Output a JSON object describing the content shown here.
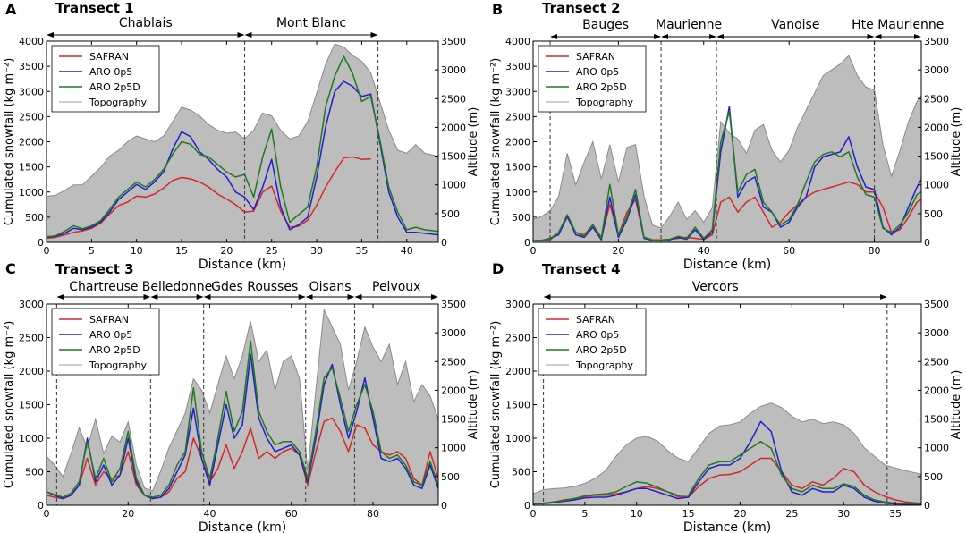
{
  "colors": {
    "safran": "#d62728",
    "aro_0p5": "#1f1fcf",
    "aro_2p5d": "#1e7a1e",
    "topography_fill": "#bdbdbd",
    "topography_line": "#8a8a8a"
  },
  "legend": {
    "entries": [
      "SAFRAN",
      "ARO 0p5",
      "ARO 2p5D",
      "Topography"
    ]
  },
  "chart_data": [
    {
      "panel": "A",
      "title": "Transect 1",
      "type": "line",
      "xlabel": "Distance (km)",
      "ylabel_left": "Cumulated snowfall (kg m⁻²)",
      "ylabel_right": "Altitude (m)",
      "xlim": [
        0,
        43.5
      ],
      "ylim": [
        0,
        4000
      ],
      "y2lim": [
        0,
        3500
      ],
      "xticks": [
        0,
        5,
        10,
        15,
        20,
        25,
        30,
        35,
        40
      ],
      "yticks": [
        0,
        500,
        1000,
        1500,
        2000,
        2500,
        3000,
        3500,
        4000
      ],
      "y2ticks": [
        0,
        500,
        1000,
        1500,
        2000,
        2500,
        3000,
        3500
      ],
      "regions": [
        {
          "label": "Chablais",
          "from": 0,
          "to": 22
        },
        {
          "label": "Mont Blanc",
          "from": 22,
          "to": 36.8
        }
      ],
      "dividers": [
        22,
        36.8
      ],
      "x": [
        0,
        1,
        2,
        3,
        4,
        5,
        6,
        7,
        8,
        9,
        10,
        11,
        12,
        13,
        14,
        15,
        16,
        17,
        18,
        19,
        20,
        21,
        22,
        23,
        24,
        25,
        26,
        27,
        28,
        29,
        30,
        31,
        32,
        33,
        34,
        35,
        36,
        37,
        38,
        39,
        40,
        41,
        42,
        43.5
      ],
      "topography": [
        800,
        820,
        900,
        1000,
        1000,
        1150,
        1300,
        1500,
        1600,
        1750,
        1850,
        1800,
        1750,
        1850,
        2100,
        2350,
        2300,
        2200,
        2050,
        1950,
        1900,
        1920,
        1800,
        1950,
        2250,
        2200,
        1950,
        1800,
        1850,
        2100,
        2600,
        3100,
        3450,
        3400,
        3250,
        3150,
        2950,
        2450,
        1950,
        1600,
        1550,
        1700,
        1550,
        1500
      ],
      "series": [
        {
          "name": "SAFRAN",
          "values": [
            80,
            100,
            150,
            200,
            230,
            280,
            380,
            560,
            730,
            800,
            920,
            900,
            960,
            1080,
            1230,
            1290,
            1260,
            1200,
            1100,
            960,
            860,
            750,
            600,
            620,
            1000,
            1120,
            620,
            300,
            320,
            440,
            740,
            1100,
            1400,
            1680,
            1700,
            1650,
            1660,
            null,
            null,
            null,
            null,
            null,
            null,
            null
          ]
        },
        {
          "name": "ARO 0p5",
          "values": [
            100,
            120,
            180,
            280,
            250,
            300,
            400,
            600,
            850,
            1000,
            1150,
            1050,
            1200,
            1400,
            1850,
            2200,
            2100,
            1800,
            1650,
            1450,
            1300,
            1000,
            900,
            650,
            1100,
            1650,
            700,
            250,
            350,
            500,
            1300,
            2300,
            3000,
            3200,
            3100,
            2900,
            2950,
            2000,
            1000,
            500,
            200,
            200,
            180,
            150
          ]
        },
        {
          "name": "ARO 2p5D",
          "values": [
            110,
            130,
            220,
            330,
            270,
            330,
            430,
            650,
            900,
            1050,
            1200,
            1100,
            1250,
            1450,
            1750,
            2000,
            1950,
            1750,
            1700,
            1550,
            1400,
            1300,
            1350,
            900,
            1700,
            2250,
            1100,
            400,
            550,
            700,
            1500,
            2700,
            3300,
            3700,
            3350,
            2800,
            2900,
            2050,
            1100,
            600,
            250,
            300,
            250,
            220
          ]
        }
      ]
    },
    {
      "panel": "B",
      "title": "Transect 2",
      "type": "line",
      "xlabel": "Distance (km)",
      "ylabel_left": "Cumulated snowfall (kg m⁻²)",
      "ylabel_right": "Altitude (m)",
      "xlim": [
        0,
        91
      ],
      "ylim": [
        0,
        4000
      ],
      "y2lim": [
        0,
        3500
      ],
      "xticks": [
        0,
        20,
        40,
        60,
        80
      ],
      "yticks": [
        0,
        500,
        1000,
        1500,
        2000,
        2500,
        3000,
        3500,
        4000
      ],
      "y2ticks": [
        0,
        500,
        1000,
        1500,
        2000,
        2500,
        3000,
        3500
      ],
      "regions": [
        {
          "label": "Bauges",
          "from": 4,
          "to": 30
        },
        {
          "label": "Maurienne",
          "from": 30,
          "to": 43
        },
        {
          "label": "Vanoise",
          "from": 43,
          "to": 80
        },
        {
          "label": "Hte Maurienne",
          "from": 80,
          "to": 91
        }
      ],
      "dividers": [
        4,
        30,
        43,
        80
      ],
      "x": [
        0,
        2,
        4,
        6,
        8,
        10,
        12,
        14,
        16,
        18,
        20,
        22,
        24,
        26,
        28,
        30,
        32,
        34,
        36,
        38,
        40,
        42,
        44,
        46,
        48,
        50,
        52,
        54,
        56,
        58,
        60,
        62,
        64,
        66,
        68,
        70,
        72,
        74,
        76,
        78,
        80,
        82,
        84,
        86,
        88,
        90,
        91
      ],
      "topography": [
        400,
        450,
        550,
        800,
        1550,
        1000,
        1400,
        1750,
        1100,
        1700,
        1050,
        1650,
        1700,
        800,
        300,
        250,
        450,
        700,
        400,
        550,
        350,
        600,
        2100,
        1900,
        1800,
        1550,
        1950,
        2050,
        1600,
        1400,
        1600,
        2000,
        2300,
        2600,
        2900,
        3000,
        3100,
        3250,
        2900,
        2700,
        2650,
        1700,
        1150,
        1600,
        2100,
        2450,
        2550
      ],
      "series": [
        {
          "name": "SAFRAN",
          "values": [
            30,
            40,
            50,
            200,
            500,
            200,
            150,
            350,
            100,
            750,
            150,
            600,
            850,
            100,
            50,
            50,
            60,
            80,
            100,
            80,
            60,
            150,
            800,
            900,
            600,
            800,
            900,
            600,
            300,
            400,
            600,
            750,
            900,
            1000,
            1050,
            1100,
            1150,
            1200,
            1150,
            1000,
            1000,
            700,
            200,
            250,
            500,
            800,
            850
          ]
        },
        {
          "name": "ARO 0p5",
          "values": [
            30,
            40,
            80,
            150,
            520,
            150,
            100,
            300,
            50,
            900,
            100,
            450,
            950,
            80,
            40,
            30,
            50,
            100,
            60,
            250,
            60,
            200,
            1800,
            2700,
            900,
            1200,
            1300,
            700,
            600,
            300,
            400,
            700,
            900,
            1500,
            1700,
            1750,
            1800,
            2100,
            1500,
            1100,
            1050,
            300,
            150,
            300,
            700,
            1100,
            1250
          ]
        },
        {
          "name": "ARO 2p5D",
          "values": [
            30,
            40,
            70,
            200,
            550,
            200,
            120,
            350,
            80,
            1150,
            150,
            500,
            1050,
            100,
            50,
            40,
            60,
            120,
            80,
            300,
            80,
            250,
            2000,
            2600,
            1000,
            1350,
            1450,
            800,
            600,
            350,
            450,
            750,
            1200,
            1600,
            1750,
            1800,
            1700,
            1800,
            1300,
            950,
            900,
            280,
            200,
            350,
            600,
            950,
            1000
          ]
        }
      ]
    },
    {
      "panel": "C",
      "title": "Transect 3",
      "type": "line",
      "xlabel": "Distance (km)",
      "ylabel_left": "Cumulated snowfall (kg m⁻²)",
      "ylabel_right": "Altitude (m)",
      "xlim": [
        0,
        96
      ],
      "ylim": [
        0,
        3000
      ],
      "y2lim": [
        0,
        3500
      ],
      "xticks": [
        0,
        20,
        40,
        60,
        80
      ],
      "yticks": [
        0,
        500,
        1000,
        1500,
        2000,
        2500,
        3000
      ],
      "y2ticks": [
        0,
        500,
        1000,
        1500,
        2000,
        2500,
        3000,
        3500
      ],
      "regions": [
        {
          "label": "Chartreuse",
          "from": 2.5,
          "to": 25.5
        },
        {
          "label": "Belledonne",
          "from": 25.5,
          "to": 38.5
        },
        {
          "label": "Gdes Rousses",
          "from": 38.5,
          "to": 63.5
        },
        {
          "label": "Oisans",
          "from": 63.5,
          "to": 75.5
        },
        {
          "label": "Pelvoux",
          "from": 75.5,
          "to": 96
        }
      ],
      "dividers": [
        2.5,
        25.5,
        38.5,
        63.5,
        75.5
      ],
      "x": [
        0,
        2,
        4,
        6,
        8,
        10,
        12,
        14,
        16,
        18,
        20,
        22,
        24,
        26,
        28,
        30,
        32,
        34,
        36,
        38,
        40,
        42,
        44,
        46,
        48,
        50,
        52,
        54,
        56,
        58,
        60,
        62,
        64,
        66,
        68,
        70,
        72,
        74,
        76,
        78,
        80,
        82,
        84,
        86,
        88,
        90,
        92,
        94,
        96
      ],
      "topography": [
        850,
        700,
        500,
        900,
        1350,
        1000,
        1500,
        900,
        1200,
        1100,
        1450,
        700,
        300,
        250,
        600,
        1000,
        1300,
        1600,
        2200,
        2000,
        1600,
        2100,
        2600,
        2200,
        2600,
        3200,
        2500,
        2700,
        2000,
        2500,
        2600,
        2200,
        600,
        2000,
        3400,
        3100,
        2800,
        2000,
        2500,
        3100,
        2750,
        2500,
        2800,
        2100,
        2500,
        1800,
        2100,
        1900,
        1500
      ],
      "series": [
        {
          "name": "SAFRAN",
          "values": [
            150,
            120,
            100,
            150,
            300,
            700,
            300,
            500,
            400,
            450,
            800,
            300,
            150,
            100,
            120,
            200,
            400,
            500,
            1000,
            700,
            350,
            550,
            900,
            550,
            800,
            1150,
            700,
            800,
            700,
            800,
            850,
            750,
            300,
            800,
            1250,
            1300,
            1100,
            800,
            1200,
            1150,
            900,
            800,
            750,
            800,
            700,
            400,
            300,
            800,
            400
          ]
        },
        {
          "name": "ARO 0p5",
          "values": [
            200,
            150,
            100,
            150,
            300,
            1000,
            350,
            600,
            300,
            450,
            1000,
            350,
            150,
            100,
            120,
            250,
            500,
            750,
            1450,
            700,
            300,
            900,
            1500,
            1000,
            1200,
            2250,
            1300,
            1000,
            800,
            850,
            900,
            750,
            350,
            1000,
            1800,
            2100,
            1500,
            1000,
            1400,
            1900,
            1300,
            700,
            650,
            700,
            550,
            300,
            250,
            600,
            250
          ]
        },
        {
          "name": "ARO 2p5D",
          "values": [
            200,
            160,
            120,
            180,
            350,
            950,
            400,
            700,
            350,
            550,
            1100,
            400,
            150,
            120,
            150,
            300,
            600,
            800,
            1750,
            800,
            400,
            1000,
            1700,
            1100,
            1400,
            2450,
            1400,
            1100,
            900,
            950,
            950,
            800,
            400,
            1100,
            1900,
            2050,
            1600,
            1100,
            1500,
            1800,
            1400,
            800,
            700,
            750,
            600,
            350,
            300,
            650,
            300
          ]
        }
      ]
    },
    {
      "panel": "D",
      "title": "Transect 4",
      "type": "line",
      "xlabel": "Distance (km)",
      "ylabel_left": "Cumulated snowfall (kg m⁻²)",
      "ylabel_right": "Altitude (m)",
      "xlim": [
        0,
        37.5
      ],
      "ylim": [
        0,
        3000
      ],
      "y2lim": [
        0,
        3500
      ],
      "xticks": [
        0,
        5,
        10,
        15,
        20,
        25,
        30,
        35
      ],
      "yticks": [
        0,
        500,
        1000,
        1500,
        2000,
        2500,
        3000
      ],
      "y2ticks": [
        0,
        500,
        1000,
        1500,
        2000,
        2500,
        3000,
        3500
      ],
      "regions": [
        {
          "label": "Vercors",
          "from": 1,
          "to": 34.2
        }
      ],
      "dividers": [
        1,
        34.2
      ],
      "x": [
        0,
        1,
        2,
        3,
        4,
        5,
        6,
        7,
        8,
        9,
        10,
        11,
        12,
        13,
        14,
        15,
        16,
        17,
        18,
        19,
        20,
        21,
        22,
        23,
        24,
        25,
        26,
        27,
        28,
        29,
        30,
        31,
        32,
        33,
        34,
        35,
        36,
        37.5
      ],
      "topography": [
        200,
        270,
        290,
        300,
        330,
        380,
        470,
        600,
        850,
        1050,
        1170,
        1200,
        1120,
        950,
        820,
        760,
        1000,
        1250,
        1380,
        1400,
        1450,
        1600,
        1720,
        1780,
        1700,
        1550,
        1450,
        1500,
        1420,
        1450,
        1400,
        1250,
        1000,
        850,
        700,
        650,
        600,
        540
      ],
      "series": [
        {
          "name": "SAFRAN",
          "values": [
            20,
            30,
            50,
            80,
            100,
            130,
            150,
            150,
            170,
            200,
            250,
            280,
            250,
            200,
            130,
            120,
            280,
            400,
            450,
            460,
            500,
            600,
            700,
            700,
            500,
            300,
            250,
            350,
            300,
            400,
            550,
            500,
            300,
            200,
            130,
            80,
            50,
            30
          ]
        },
        {
          "name": "ARO 0p5",
          "values": [
            20,
            25,
            40,
            60,
            80,
            110,
            120,
            120,
            150,
            200,
            250,
            250,
            200,
            150,
            100,
            120,
            350,
            550,
            600,
            600,
            700,
            950,
            1250,
            1100,
            500,
            200,
            150,
            250,
            200,
            200,
            300,
            250,
            120,
            60,
            30,
            20,
            15,
            10
          ]
        },
        {
          "name": "ARO 2p5D",
          "values": [
            25,
            30,
            50,
            70,
            100,
            140,
            160,
            170,
            200,
            280,
            350,
            330,
            270,
            200,
            150,
            150,
            400,
            600,
            650,
            650,
            750,
            850,
            950,
            850,
            450,
            250,
            200,
            300,
            250,
            250,
            320,
            280,
            150,
            80,
            50,
            30,
            25,
            20
          ]
        }
      ]
    }
  ]
}
